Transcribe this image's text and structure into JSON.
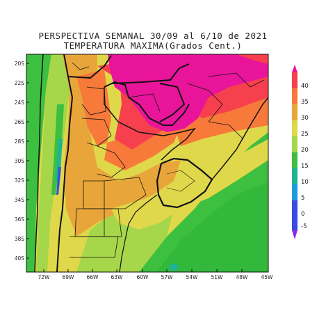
{
  "title": {
    "line1": "PERSPECTIVA SEMANAL  30/09 al 6/10 de 2021",
    "line2": "TEMPERATURA MAXIMA(Grados Cent.)"
  },
  "map": {
    "lat_labels": [
      "20S",
      "22S",
      "24S",
      "26S",
      "28S",
      "30S",
      "32S",
      "34S",
      "36S",
      "38S",
      "40S"
    ],
    "lon_labels": [
      "72W",
      "69W",
      "66W",
      "63W",
      "60W",
      "57W",
      "54W",
      "51W",
      "48W",
      "45W"
    ]
  },
  "colorbar": {
    "labels": [
      "40",
      "35",
      "30",
      "25",
      "20",
      "15",
      "10",
      "5",
      "0",
      "-5"
    ],
    "bins": [
      {
        "range": "> 40",
        "color": "#e8159a"
      },
      {
        "range": "35-40",
        "color": "#f6404d"
      },
      {
        "range": "30-35",
        "color": "#f77a3a"
      },
      {
        "range": "25-30",
        "color": "#e8a63a"
      },
      {
        "range": "20-25",
        "color": "#dfd84a"
      },
      {
        "range": "15-20",
        "color": "#a6d64a"
      },
      {
        "range": "10-15",
        "color": "#3dbf40"
      },
      {
        "range": "5-10",
        "color": "#1fb394"
      },
      {
        "range": "0-5",
        "color": "#1d9be0"
      },
      {
        "range": "-5-0",
        "color": "#3a4ce0"
      },
      {
        "range": "< -5",
        "color": "#8a2be0"
      }
    ]
  }
}
